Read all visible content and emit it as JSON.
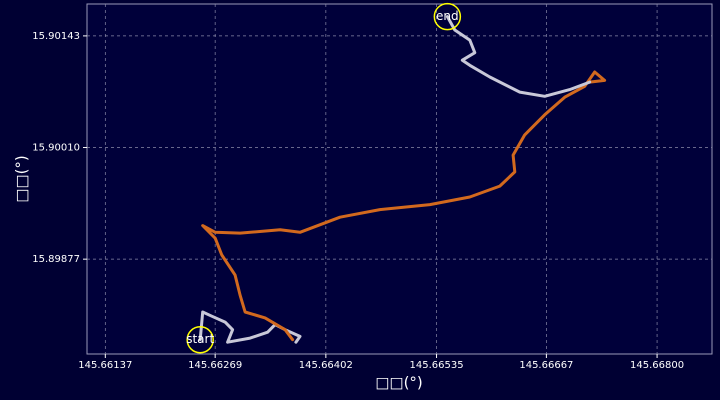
{
  "chart_data": {
    "type": "line",
    "x_label": "□□(°)",
    "y_label": "□□(°)",
    "xlim": [
      145.66115,
      145.66866
    ],
    "ylim": [
      15.89764,
      15.90181
    ],
    "xticks": [
      145.66137,
      145.66269,
      145.66402,
      145.66535,
      145.66667,
      {
        "value": 145.668,
        "label": "145.66800"
      }
    ],
    "yticks": [
      15.89877,
      {
        "value": 15.9001,
        "label": "15.90010"
      },
      15.90143
    ],
    "grid": true,
    "annotations": [
      "start",
      "end"
    ],
    "series": [
      {
        "color": "#c8c8d8",
        "x": [
          145.66251,
          145.66254,
          145.66265,
          145.66281,
          145.6629,
          145.66284,
          145.66311,
          145.66332,
          145.66341,
          145.66353,
          145.66371,
          145.66366
        ],
        "values": [
          15.89781,
          15.89814,
          15.89809,
          15.89802,
          15.89793,
          15.89778,
          15.89783,
          15.8979,
          15.89799,
          15.89793,
          15.89785,
          15.89778
        ]
      },
      {
        "color": "#d2691e",
        "x": [
          145.66362,
          145.66353,
          145.66329,
          145.66305,
          145.66299,
          145.66293,
          145.66277,
          145.66269,
          145.66254,
          145.66269,
          145.66299,
          145.66347,
          145.66371,
          145.66419,
          145.66467,
          145.66527,
          145.66575,
          145.66611,
          145.66629,
          145.66627,
          145.66641,
          145.66665,
          145.66689,
          145.66713,
          145.66725,
          145.66737,
          145.66719
        ],
        "values": [
          15.89781,
          15.89793,
          15.89807,
          15.89814,
          15.89834,
          15.89858,
          15.89882,
          15.89902,
          15.89917,
          15.89909,
          15.89908,
          15.89912,
          15.89909,
          15.89927,
          15.89936,
          15.89942,
          15.89951,
          15.89964,
          15.89981,
          15.90001,
          15.90025,
          15.90049,
          15.9007,
          15.90083,
          15.901,
          15.9009,
          15.90088
        ]
      },
      {
        "color": "#c8c8d8",
        "x": [
          145.66719,
          145.66695,
          145.66665,
          145.66635,
          145.66599,
          145.66575,
          145.66566,
          145.66581,
          145.66575,
          145.66557,
          145.66548
        ],
        "values": [
          15.90088,
          15.90079,
          15.90071,
          15.90076,
          15.90094,
          15.90108,
          15.90114,
          15.90123,
          15.90138,
          15.9015,
          15.90166
        ]
      }
    ]
  }
}
